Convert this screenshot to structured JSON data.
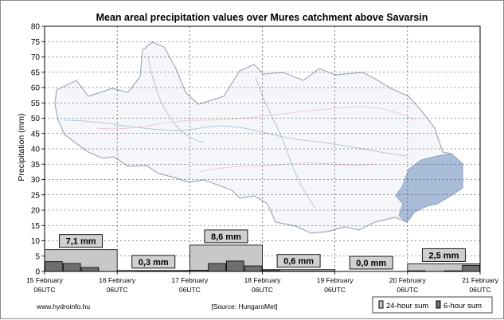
{
  "chart_data": {
    "type": "bar",
    "title": "Mean areal precipitation values over Mures catchment above Savarsin",
    "ylabel": "Precipitation (mm)",
    "xlabel": "",
    "ylim": [
      0,
      80
    ],
    "y_ticks": [
      0,
      5,
      10,
      15,
      20,
      25,
      30,
      35,
      40,
      45,
      50,
      55,
      60,
      65,
      70,
      75,
      80
    ],
    "x_ticks": [
      {
        "date": "15 February",
        "time": "06UTC"
      },
      {
        "date": "16 February",
        "time": "06UTC"
      },
      {
        "date": "17 February",
        "time": "06UTC"
      },
      {
        "date": "18 February",
        "time": "06UTC"
      },
      {
        "date": "19 February",
        "time": "06UTC"
      },
      {
        "date": "20 February",
        "time": "06UTC"
      },
      {
        "date": "21 February",
        "time": "06UTC"
      }
    ],
    "grid": true,
    "legend_position": "bottom-right",
    "series": [
      {
        "name": "24-hour sum",
        "color": "#c8c8c8",
        "values": [
          7.1,
          0.3,
          8.6,
          0.6,
          0.0,
          2.5
        ],
        "labels": [
          "7,1 mm",
          "0,3 mm",
          "8,6 mm",
          "0,6 mm",
          "0,0 mm",
          "2,5 mm"
        ]
      },
      {
        "name": "6-hour sum",
        "color": "#6e6e6e",
        "values": [
          3.2,
          2.6,
          1.3,
          0.0,
          0.0,
          0.1,
          0.1,
          0.1,
          0.4,
          2.6,
          3.4,
          1.8,
          0.3,
          0.1,
          0.1,
          0.1,
          0.0,
          0.0,
          0.0,
          0.0,
          0.2,
          0.0,
          0.2,
          2.0
        ]
      }
    ],
    "background_map": "Mures catchment map",
    "footer": {
      "website": "www.hydroinfo.hu",
      "source": "[Source: HungaroMet]"
    }
  }
}
